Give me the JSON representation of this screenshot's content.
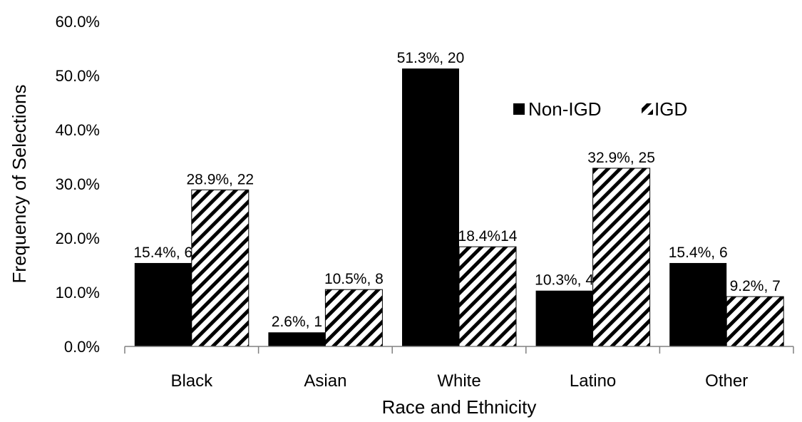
{
  "chart_data": {
    "type": "bar",
    "title": "",
    "xlabel": "Race and Ethnicity",
    "ylabel": "Frequency of Selections",
    "ylim": [
      0,
      60
    ],
    "y_ticks": [
      "0.0%",
      "10.0%",
      "20.0%",
      "30.0%",
      "40.0%",
      "50.0%",
      "60.0%"
    ],
    "categories": [
      "Black",
      "Asian",
      "White",
      "Latino",
      "Other"
    ],
    "series": [
      {
        "name": "Non-IGD",
        "fill": "solid",
        "color": "#000000",
        "values": [
          15.4,
          2.6,
          51.3,
          10.3,
          15.4
        ],
        "labels": [
          "15.4%, 6",
          "2.6%, 1",
          "51.3%, 20",
          "10.3%, 4",
          "15.4%, 6"
        ]
      },
      {
        "name": "IGD",
        "fill": "diagonal-stripes",
        "color": "#000000",
        "values": [
          28.9,
          10.5,
          18.4,
          32.9,
          9.2
        ],
        "labels": [
          "28.9%, 22",
          "10.5%, 8",
          "18.4%14",
          "32.9%, 25",
          "9.2%, 7"
        ]
      }
    ],
    "grid": false,
    "legend_position": "top-right"
  }
}
